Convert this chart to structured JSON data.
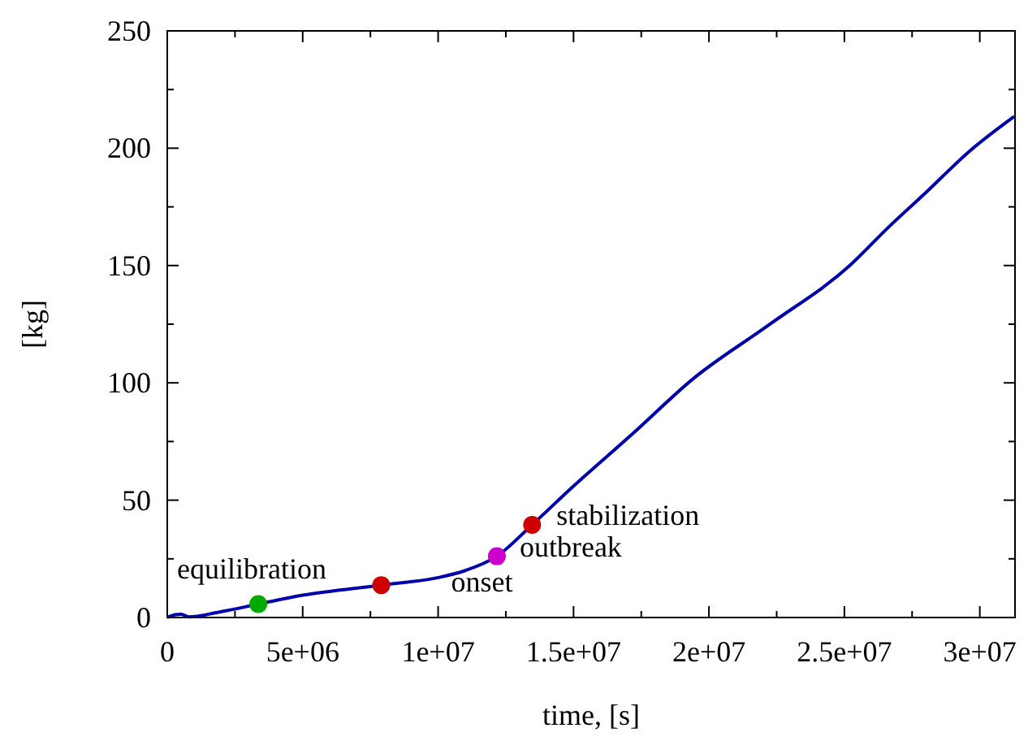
{
  "chart_data": {
    "type": "line",
    "xlabel": "time, [s]",
    "ylabel": "[kg]",
    "xlim": [
      0,
      31300000
    ],
    "ylim": [
      0,
      250
    ],
    "xticks": [
      {
        "value": 0,
        "label": "0"
      },
      {
        "value": 5000000,
        "label": "5e+06"
      },
      {
        "value": 10000000,
        "label": "1e+07"
      },
      {
        "value": 15000000,
        "label": "1.5e+07"
      },
      {
        "value": 20000000,
        "label": "2e+07"
      },
      {
        "value": 25000000,
        "label": "2.5e+07"
      },
      {
        "value": 30000000,
        "label": "3e+07"
      }
    ],
    "yticks": [
      0,
      50,
      100,
      150,
      200,
      250
    ],
    "grid": false,
    "series": [
      {
        "color": "#0000aa",
        "marker": "none",
        "x": [
          0,
          300000,
          500000,
          800000,
          2000000,
          3360000,
          5000000,
          7900000,
          10000000,
          11000000,
          12170000,
          13470000,
          15000000,
          17200000,
          19400000,
          22200000,
          25200000,
          26600000,
          28000000,
          29600000,
          31270000
        ],
        "values": [
          0,
          1.2,
          1.4,
          0.3,
          2.5,
          5.7,
          9.5,
          13.8,
          17,
          20,
          26.1,
          39.5,
          56,
          78.5,
          101.6,
          124.6,
          150,
          166,
          181,
          198.5,
          213.5
        ]
      },
      {
        "type": "scatter",
        "marker": "circle",
        "colors": [
          "#00aa00",
          "#cc0000",
          "#cc00cc",
          "#cc0000"
        ],
        "x": [
          3360000,
          7900000,
          12170000,
          13470000
        ],
        "values": [
          5.7,
          13.8,
          26.1,
          39.5
        ]
      }
    ],
    "annotations": [
      {
        "text": "equilibration",
        "x": 3360000,
        "y": 5.7
      },
      {
        "text": "onset",
        "x": 7900000,
        "y": 13.8
      },
      {
        "text": "outbreak",
        "x": 12170000,
        "y": 26.1
      },
      {
        "text": "stabilization",
        "x": 13470000,
        "y": 39.5
      }
    ]
  }
}
